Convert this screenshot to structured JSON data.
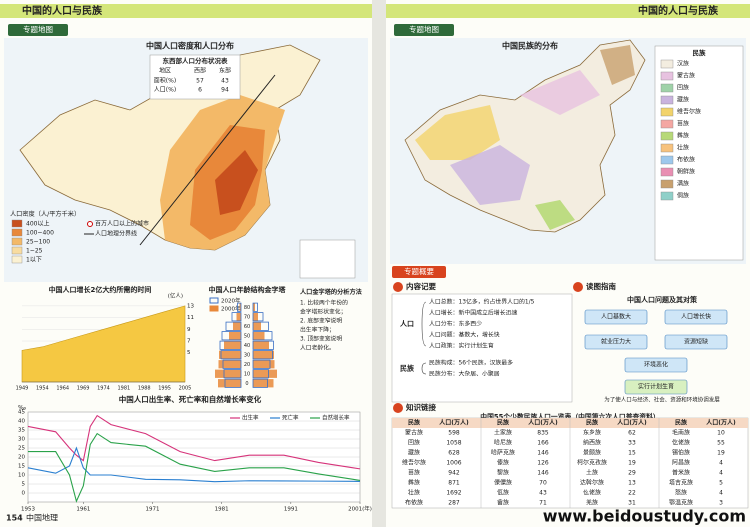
{
  "left_page": {
    "header": "中国的人口与民族",
    "tab": "专题地图",
    "density_map": {
      "title": "中国人口密度和人口分布",
      "legend_title": "人口密度（人/平方千米）",
      "legend": [
        "400以上",
        "100~400",
        "25~100",
        "1~25",
        "1以下"
      ],
      "colors": [
        "#c8501e",
        "#e8883a",
        "#f3b968",
        "#f8dca0",
        "#fbf1d2"
      ],
      "city_legend": "百万人口以上的城市",
      "line_label": "人口地理分界线",
      "table": {
        "title": "东西部人口分布状况表",
        "columns": [
          "地区",
          "西部",
          "东部"
        ],
        "rows": [
          [
            "面积(%)",
            "57",
            "43"
          ],
          [
            "人口(%)",
            "6",
            "94"
          ]
        ]
      }
    },
    "growth_chart": {
      "type": "area",
      "title": "中国人口增长2亿大约所需的时间",
      "y_label": "(亿人)",
      "categories": [
        "1949",
        "1954",
        "1964",
        "1969",
        "1974",
        "1981",
        "1988",
        "1995",
        "2005"
      ],
      "values": [
        5.4,
        6,
        7,
        8,
        9,
        10,
        11,
        12,
        13
      ],
      "color": "#f5c842",
      "ylim": [
        0,
        14
      ],
      "yticks": [
        5,
        7,
        9,
        11,
        13
      ]
    },
    "pyramid": {
      "type": "pyramid",
      "title": "中国人口年龄结构金字塔",
      "categories": [
        "0",
        "10",
        "20",
        "30",
        "40",
        "50",
        "60",
        "70",
        "80"
      ],
      "series": [
        {
          "name": "2020年",
          "color": "#3a6fc4",
          "male": [
            3.2,
            3.4,
            3.6,
            4.0,
            4.2,
            3.8,
            3.0,
            1.8,
            0.7
          ],
          "female": [
            2.9,
            3.1,
            3.4,
            3.9,
            4.1,
            3.8,
            3.1,
            2.0,
            0.9
          ]
        },
        {
          "name": "2000年",
          "color": "#e8883a",
          "male": [
            4.6,
            5.2,
            4.5,
            4.4,
            3.4,
            2.4,
            1.6,
            0.9,
            0.3
          ],
          "female": [
            4.1,
            4.8,
            4.3,
            4.2,
            3.2,
            2.3,
            1.6,
            1.0,
            0.4
          ]
        }
      ]
    },
    "pyramid_note": {
      "title": "人口金字塔的分析方法",
      "lines": [
        "1. 比较两个年份的",
        "金字塔形状变化；",
        "2. 底部变窄说明",
        "出生率下降；",
        "3. 顶部变宽说明",
        "人口老龄化。"
      ]
    },
    "rate_chart": {
      "type": "line",
      "title": "中国人口出生率、死亡率和自然增长率变化",
      "y_label": "‰",
      "x": [
        1953,
        1957,
        1959,
        1960,
        1961,
        1962,
        1963,
        1965,
        1970,
        1975,
        1980,
        1985,
        1990,
        1995,
        2000,
        2001
      ],
      "series": [
        {
          "name": "出生率",
          "color": "#d6337a",
          "values": [
            37,
            34,
            25,
            21,
            18,
            37,
            43,
            38,
            33,
            23,
            18,
            21,
            21,
            17,
            14,
            13.4
          ]
        },
        {
          "name": "死亡率",
          "color": "#2a7fd0",
          "values": [
            14,
            11,
            15,
            25,
            14,
            10,
            10,
            10,
            7.6,
            7.3,
            6.3,
            6.8,
            6.7,
            6.6,
            6.5,
            6.4
          ]
        },
        {
          "name": "自然增长率",
          "color": "#2aa24a",
          "values": [
            23,
            23,
            10,
            -4.6,
            4,
            27,
            33,
            28,
            26,
            16,
            12,
            14,
            14,
            10.6,
            7.6,
            7
          ]
        }
      ],
      "xlim": [
        1953,
        2001
      ],
      "xticks": [
        1953,
        1961,
        1971,
        1981,
        1991,
        {
          "value": 2001,
          "label": "2001(年)"
        }
      ],
      "ylim": [
        -5,
        45
      ],
      "yticks": [
        0,
        5,
        10,
        15,
        20,
        25,
        30,
        35,
        40,
        45
      ]
    },
    "page_number": "154",
    "footer": "中国地理"
  },
  "right_page": {
    "header": "中国的人口与民族",
    "tab": "专题地图",
    "ethnic_map": {
      "title": "中国民族的分布",
      "legend_title": "民族",
      "legend": [
        "汉族",
        "蒙古族",
        "回族",
        "藏族",
        "维吾尔族",
        "苗族",
        "彝族",
        "壮族",
        "布依族",
        "朝鲜族",
        "满族",
        "侗族"
      ],
      "colors": [
        "#f3ede0",
        "#e7c2e0",
        "#9fd2a8",
        "#c9b3de",
        "#f2d36b",
        "#f4a7a2",
        "#b7d978",
        "#f7c27d",
        "#9dc8ec",
        "#e98fb3",
        "#c8a06e",
        "#8fd0c9"
      ]
    },
    "summary": {
      "title": "专题概要",
      "notes": {
        "title": "内容记要",
        "groups": [
          {
            "root": "人口",
            "items": [
              "人口总数：13亿多，约占世界人口的1/5",
              "人口增长：新中国成立后增长迅速",
              "人口分布：东多西少",
              "人口问题：基数大，增长快",
              "人口政策：实行计划生育"
            ]
          },
          {
            "root": "民族",
            "items": [
              "民族构成：56个民族，汉族最多",
              "民族分布：大杂居、小聚居"
            ]
          }
        ]
      },
      "guide": {
        "title": "读图指南",
        "chart_title": "中国人口问题及其对策",
        "boxes": [
          "人口基数大",
          "人口增长快",
          "就业压力大",
          "资源短缺",
          "环境恶化",
          "实行计划生育"
        ],
        "note": "为了使人口与经济、社会、资源和环境协调发展"
      }
    },
    "link": {
      "title": "知识链接",
      "table_title": "中国55个少数民族人口一览表（中国第六次人口普查资料）",
      "columns": [
        "民族",
        "人口(万人)"
      ],
      "rows": [
        [
          "蒙古族",
          "598",
          "土家族",
          "835",
          "东乡族",
          "62",
          "毛南族",
          "10"
        ],
        [
          "回族",
          "1058",
          "哈尼族",
          "166",
          "纳西族",
          "33",
          "仡佬族",
          "55"
        ],
        [
          "藏族",
          "628",
          "哈萨克族",
          "146",
          "景颇族",
          "15",
          "锡伯族",
          "19"
        ],
        [
          "维吾尔族",
          "1006",
          "傣族",
          "126",
          "柯尔克孜族",
          "19",
          "阿昌族",
          "4"
        ],
        [
          "苗族",
          "942",
          "黎族",
          "146",
          "土族",
          "29",
          "普米族",
          "4"
        ],
        [
          "彝族",
          "871",
          "傈僳族",
          "70",
          "达斡尔族",
          "13",
          "塔吉克族",
          "5"
        ],
        [
          "壮族",
          "1692",
          "佤族",
          "43",
          "仫佬族",
          "22",
          "怒族",
          "4"
        ],
        [
          "布依族",
          "287",
          "畲族",
          "71",
          "羌族",
          "31",
          "鄂温克族",
          "3"
        ]
      ]
    },
    "url": "www.beidoustudy.com"
  }
}
